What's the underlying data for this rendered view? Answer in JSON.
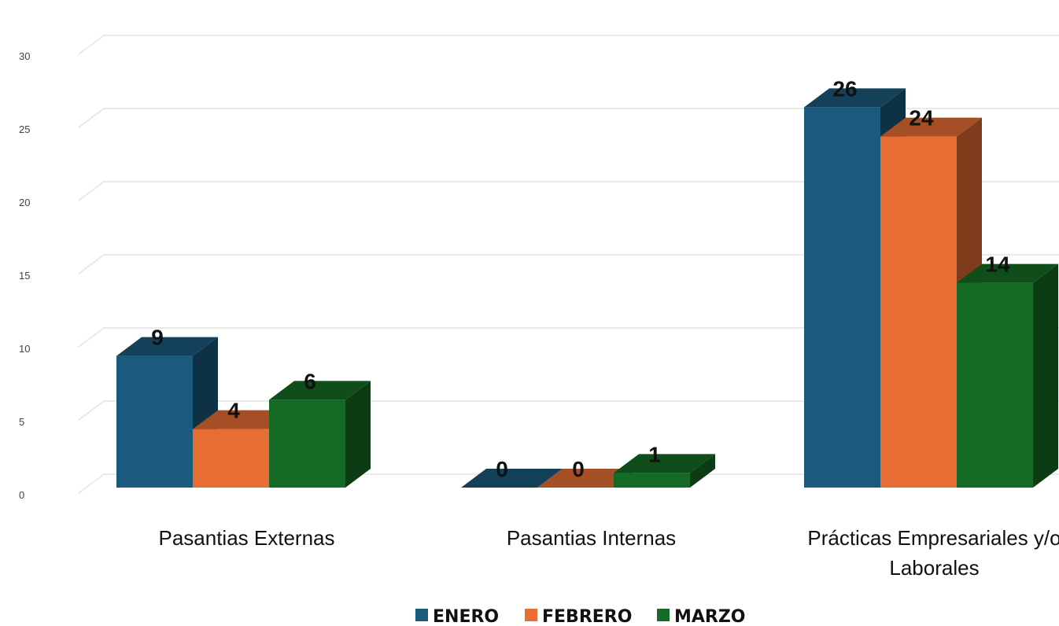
{
  "chart_data": {
    "type": "bar",
    "style": "3d-clustered-column",
    "title": "",
    "xlabel": "",
    "ylabel": "",
    "categories": [
      [
        "Pasantias Externas"
      ],
      [
        "Pasantias Internas"
      ],
      [
        "Prácticas Empresariales y/o",
        "Laborales"
      ]
    ],
    "series": [
      {
        "name": "ENERO",
        "values": [
          9,
          0,
          26
        ],
        "color": "#1a5a7d"
      },
      {
        "name": "FEBRERO",
        "values": [
          4,
          0,
          24
        ],
        "color": "#e66d33"
      },
      {
        "name": "MARZO",
        "values": [
          6,
          1,
          14
        ],
        "color": "#156b25"
      }
    ],
    "ylim": [
      0,
      30
    ],
    "yticks": [
      0,
      5,
      10,
      15,
      20,
      25,
      30
    ],
    "grid": true,
    "data_labels": true,
    "legend": "bottom"
  }
}
